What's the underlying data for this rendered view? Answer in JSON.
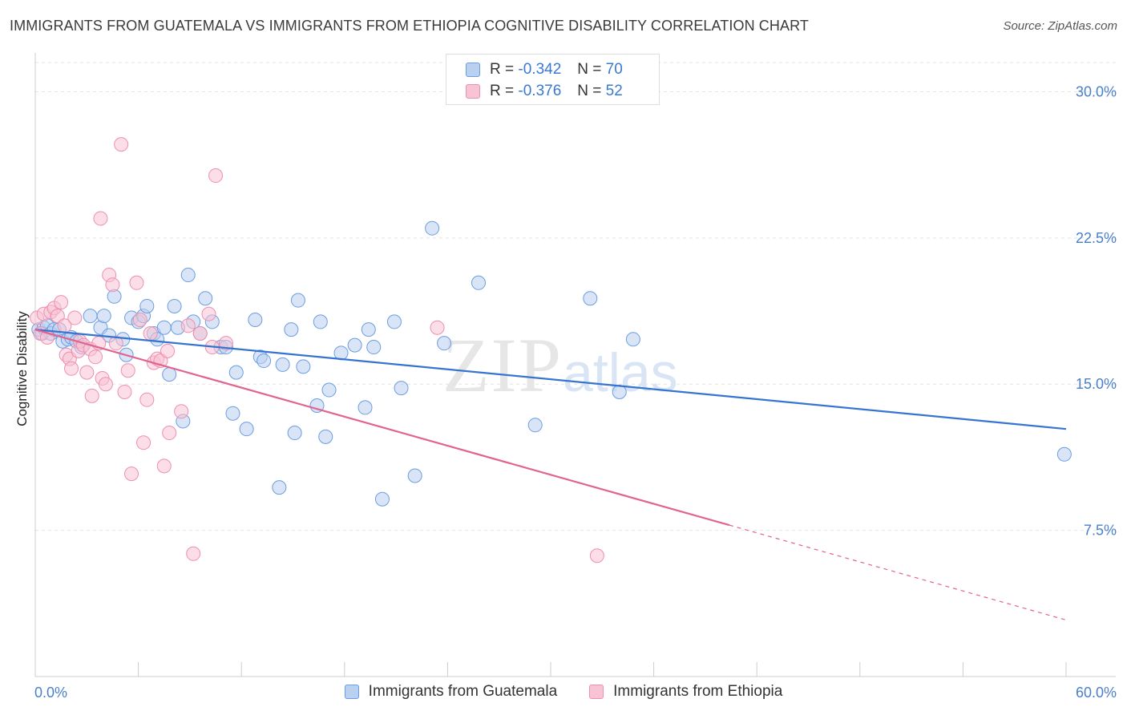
{
  "title": "IMMIGRANTS FROM GUATEMALA VS IMMIGRANTS FROM ETHIOPIA COGNITIVE DISABILITY CORRELATION CHART",
  "source": "Source: ZipAtlas.com",
  "watermark": {
    "zip": "ZIP",
    "atlas": "atlas"
  },
  "legend": {
    "r_label": "R =",
    "n_label": "N =",
    "guatemala": {
      "r": "-0.342",
      "n": "70"
    },
    "ethiopia": {
      "r": "-0.376",
      "n": "52"
    }
  },
  "bottom_legend": {
    "guatemala": "Immigrants from Guatemala",
    "ethiopia": "Immigrants from Ethiopia"
  },
  "colors": {
    "guatemala_fill": "#b9d0f0",
    "guatemala_stroke": "#6b9de0",
    "guatemala_line": "#3574d0",
    "ethiopia_fill": "#f8c3d4",
    "ethiopia_stroke": "#ee8fae",
    "ethiopia_line": "#e0648f",
    "tick_label": "#4a7fcc",
    "grid": "#e4e4e4"
  },
  "chart_data": {
    "type": "scatter",
    "title": "IMMIGRANTS FROM GUATEMALA VS IMMIGRANTS FROM ETHIOPIA COGNITIVE DISABILITY CORRELATION CHART",
    "xlabel": "",
    "ylabel": "Cognitive Disability",
    "xlim": [
      0,
      60
    ],
    "ylim": [
      0,
      31.5
    ],
    "x_tick_labels": [
      "0.0%",
      "60.0%"
    ],
    "y_ticks": [
      7.5,
      15.0,
      22.5,
      30.0
    ],
    "y_tick_labels": [
      "7.5%",
      "15.0%",
      "22.5%",
      "30.0%"
    ],
    "grid": "horizontal dashed",
    "legend_position": "top-center",
    "series": [
      {
        "name": "Immigrants from Guatemala",
        "r": -0.342,
        "n": 70,
        "trend": {
          "x": [
            0,
            60
          ],
          "y": [
            17.8,
            12.7
          ],
          "solid_to": 60
        },
        "points": [
          [
            0.2,
            17.8
          ],
          [
            0.4,
            17.6
          ],
          [
            0.5,
            17.9
          ],
          [
            0.7,
            18.0
          ],
          [
            0.9,
            17.6
          ],
          [
            1.1,
            17.8
          ],
          [
            1.4,
            17.8
          ],
          [
            1.6,
            17.2
          ],
          [
            1.9,
            17.3
          ],
          [
            2.1,
            17.4
          ],
          [
            2.4,
            17.2
          ],
          [
            2.7,
            16.9
          ],
          [
            3.2,
            18.5
          ],
          [
            3.8,
            17.9
          ],
          [
            4.0,
            18.5
          ],
          [
            4.3,
            17.5
          ],
          [
            4.6,
            19.5
          ],
          [
            5.1,
            17.3
          ],
          [
            5.3,
            16.5
          ],
          [
            5.6,
            18.4
          ],
          [
            6.0,
            18.2
          ],
          [
            6.3,
            18.5
          ],
          [
            6.5,
            19.0
          ],
          [
            6.9,
            17.6
          ],
          [
            7.1,
            17.3
          ],
          [
            7.5,
            17.9
          ],
          [
            7.8,
            15.5
          ],
          [
            8.1,
            19.0
          ],
          [
            8.3,
            17.9
          ],
          [
            8.6,
            13.1
          ],
          [
            8.9,
            20.6
          ],
          [
            9.2,
            18.2
          ],
          [
            9.6,
            17.6
          ],
          [
            9.9,
            19.4
          ],
          [
            10.3,
            18.2
          ],
          [
            10.8,
            16.9
          ],
          [
            11.1,
            16.9
          ],
          [
            11.5,
            13.5
          ],
          [
            11.7,
            15.6
          ],
          [
            12.3,
            12.7
          ],
          [
            12.8,
            18.3
          ],
          [
            13.1,
            16.4
          ],
          [
            13.3,
            16.2
          ],
          [
            14.2,
            9.7
          ],
          [
            14.4,
            16.0
          ],
          [
            14.9,
            17.8
          ],
          [
            15.1,
            12.5
          ],
          [
            15.3,
            19.3
          ],
          [
            15.6,
            15.9
          ],
          [
            16.4,
            13.9
          ],
          [
            16.6,
            18.2
          ],
          [
            16.9,
            12.3
          ],
          [
            17.1,
            14.7
          ],
          [
            17.8,
            16.6
          ],
          [
            18.6,
            17.0
          ],
          [
            19.2,
            13.8
          ],
          [
            19.4,
            17.8
          ],
          [
            19.7,
            16.9
          ],
          [
            20.2,
            9.1
          ],
          [
            20.9,
            18.2
          ],
          [
            21.3,
            14.8
          ],
          [
            22.1,
            10.3
          ],
          [
            23.1,
            23.0
          ],
          [
            23.8,
            17.1
          ],
          [
            25.8,
            20.2
          ],
          [
            29.1,
            12.9
          ],
          [
            32.3,
            19.4
          ],
          [
            34.0,
            14.6
          ],
          [
            34.8,
            17.3
          ],
          [
            59.9,
            11.4
          ]
        ]
      },
      {
        "name": "Immigrants from Ethiopia",
        "r": -0.376,
        "n": 52,
        "trend": {
          "x": [
            0,
            60
          ],
          "y": [
            17.8,
            2.9
          ],
          "solid_to": 40.4
        },
        "points": [
          [
            0.1,
            18.4
          ],
          [
            0.3,
            17.6
          ],
          [
            0.5,
            18.6
          ],
          [
            0.7,
            17.4
          ],
          [
            0.9,
            18.7
          ],
          [
            1.1,
            18.9
          ],
          [
            1.3,
            18.5
          ],
          [
            1.5,
            19.2
          ],
          [
            1.7,
            18.0
          ],
          [
            1.8,
            16.5
          ],
          [
            2.0,
            16.3
          ],
          [
            2.1,
            15.8
          ],
          [
            2.3,
            18.4
          ],
          [
            2.5,
            16.7
          ],
          [
            2.6,
            17.2
          ],
          [
            2.8,
            17.0
          ],
          [
            3.0,
            15.6
          ],
          [
            3.2,
            16.8
          ],
          [
            3.3,
            14.4
          ],
          [
            3.5,
            16.4
          ],
          [
            3.7,
            17.1
          ],
          [
            3.9,
            15.3
          ],
          [
            4.1,
            15.0
          ],
          [
            4.3,
            20.6
          ],
          [
            4.5,
            20.1
          ],
          [
            4.7,
            17.1
          ],
          [
            5.0,
            27.3
          ],
          [
            5.2,
            14.6
          ],
          [
            5.4,
            15.7
          ],
          [
            5.6,
            10.4
          ],
          [
            5.9,
            20.2
          ],
          [
            6.1,
            18.3
          ],
          [
            6.3,
            12.0
          ],
          [
            6.5,
            14.2
          ],
          [
            6.7,
            17.6
          ],
          [
            6.9,
            16.1
          ],
          [
            7.1,
            16.3
          ],
          [
            7.3,
            16.2
          ],
          [
            7.5,
            10.8
          ],
          [
            7.7,
            16.7
          ],
          [
            7.8,
            12.5
          ],
          [
            8.5,
            13.6
          ],
          [
            8.9,
            18.0
          ],
          [
            9.2,
            6.3
          ],
          [
            9.6,
            17.6
          ],
          [
            10.1,
            18.6
          ],
          [
            10.3,
            16.9
          ],
          [
            10.5,
            25.7
          ],
          [
            11.1,
            17.1
          ],
          [
            3.8,
            23.5
          ],
          [
            23.4,
            17.9
          ],
          [
            32.7,
            6.2
          ]
        ]
      }
    ]
  }
}
